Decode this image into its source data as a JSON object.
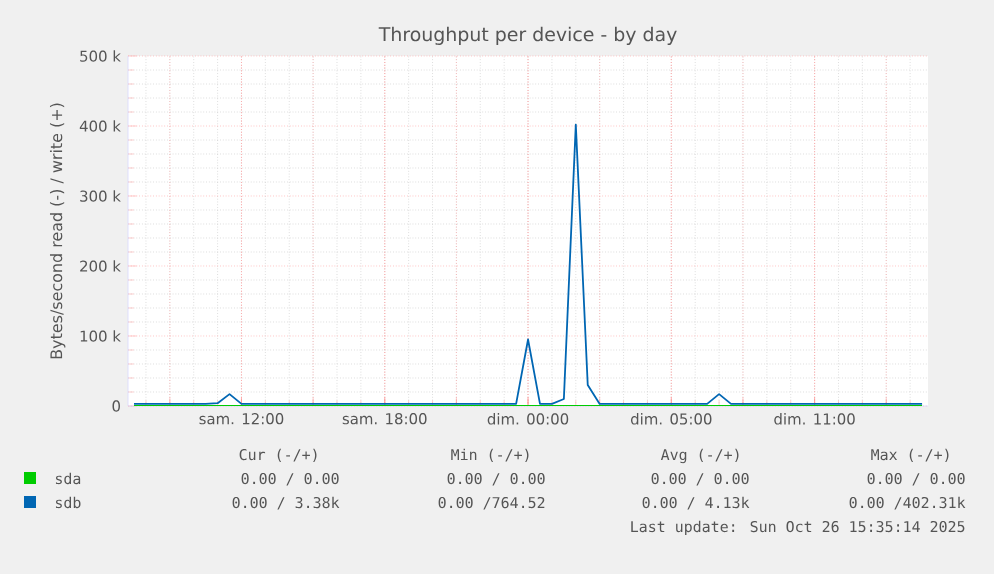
{
  "chart_data": {
    "type": "line",
    "title": "Throughput per device - by day",
    "ylabel": "Bytes/second read (-) / write (+)",
    "categories": [
      null,
      null,
      null,
      null,
      null,
      null,
      null,
      null,
      null,
      "sam. 12:00",
      null,
      null,
      null,
      null,
      null,
      null,
      null,
      null,
      null,
      null,
      null,
      "sam. 18:00",
      null,
      null,
      null,
      null,
      null,
      null,
      null,
      null,
      null,
      null,
      null,
      "dim. 00:00",
      null,
      null,
      null,
      null,
      null,
      null,
      null,
      null,
      null,
      null,
      null,
      "dim. 05:00",
      null,
      null,
      null,
      null,
      null,
      null,
      null,
      null,
      null,
      null,
      null,
      "dim. 11:00",
      null,
      null,
      null,
      null,
      null,
      null,
      null,
      null,
      null
    ],
    "ylim": [
      0,
      500000
    ],
    "yticks": [
      0,
      {
        "value": 100000,
        "label": "100 k"
      },
      {
        "value": 200000,
        "label": "200 k"
      },
      {
        "value": 300000,
        "label": "300 k"
      },
      {
        "value": 400000,
        "label": "400 k"
      },
      {
        "value": 500000,
        "label": "500 k"
      }
    ],
    "grid": true,
    "legend": "bottom left",
    "line_style": "solid",
    "marker": "none",
    "series": [
      {
        "name": "sda",
        "color": "#00cc00",
        "values": [
          0,
          0,
          0,
          0,
          0,
          0,
          0,
          0,
          0,
          0,
          0,
          0,
          0,
          0,
          0,
          0,
          0,
          0,
          0,
          0,
          0,
          0,
          0,
          0,
          0,
          0,
          0,
          0,
          0,
          0,
          0,
          0,
          0,
          0,
          0,
          0,
          0,
          0,
          0,
          0,
          0,
          0,
          0,
          0,
          0,
          0,
          0,
          0,
          0,
          0,
          0,
          0,
          0,
          0,
          0,
          0,
          0,
          0,
          0,
          0,
          0,
          0,
          0,
          0,
          0,
          0,
          0
        ]
      },
      {
        "name": "sdb",
        "color": "#0066b3",
        "values": [
          3000,
          3000,
          3000,
          3000,
          3000,
          3000,
          3000,
          4000,
          17000,
          3000,
          3000,
          3000,
          3000,
          3000,
          3000,
          3000,
          3000,
          3000,
          3000,
          3000,
          3000,
          3000,
          3000,
          3000,
          3000,
          3000,
          3000,
          3000,
          3000,
          3000,
          3000,
          3000,
          3000,
          95000,
          3000,
          3000,
          10000,
          402000,
          30000,
          3000,
          3000,
          3000,
          3000,
          3000,
          3000,
          3000,
          3000,
          3000,
          3000,
          17000,
          3000,
          3000,
          3000,
          3000,
          3000,
          3000,
          3000,
          3000,
          3000,
          3000,
          3000,
          3000,
          3000,
          3000,
          3000,
          3000,
          3000
        ]
      }
    ],
    "annotations": [
      "Cur (-/+)",
      "Min (-/+)",
      "Avg (-/+)",
      "Max (-/+)",
      "0.00 /  0.00",
      "0.00 /  0.00",
      "0.00 /  0.00",
      "0.00 /  0.00",
      "0.00 /  3.38k",
      "0.00 /764.52",
      "0.00 /  4.13k",
      "0.00 /402.31k",
      "Last update: Sun Oct 26 15:35:14 2025"
    ]
  }
}
